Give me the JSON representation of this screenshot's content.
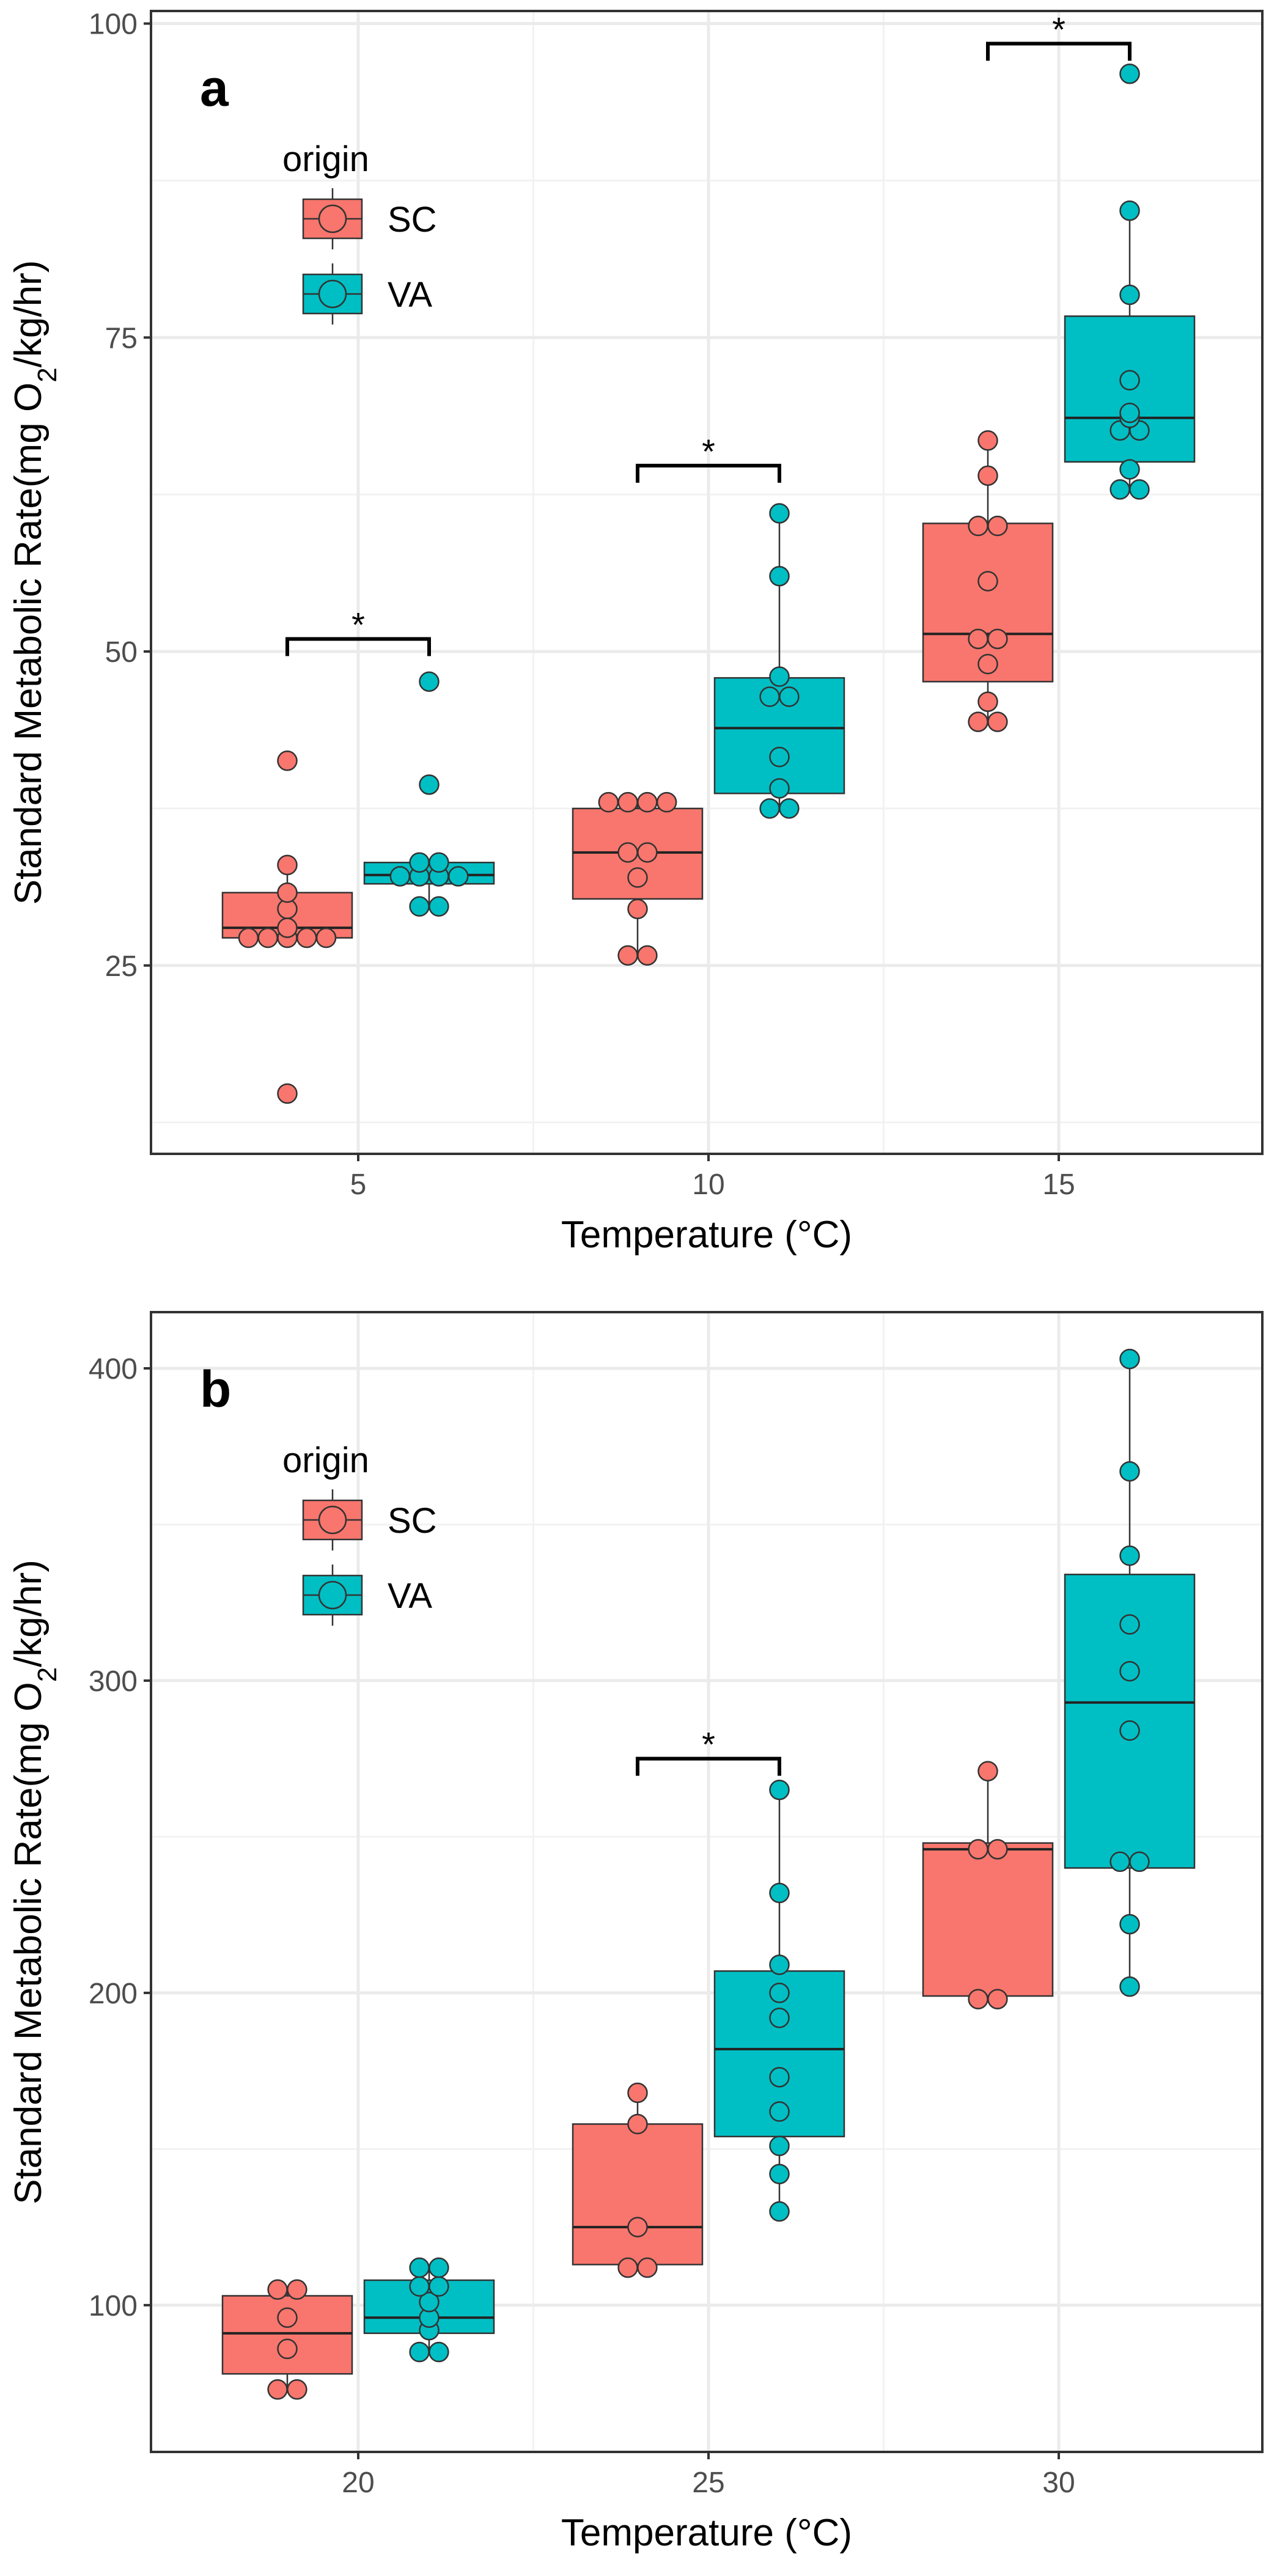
{
  "chart_data": [
    {
      "panel_label": "a",
      "type": "box",
      "xlabel": "Temperature (°C)",
      "ylabel_prefix": "Standard Metabolic Rate(mg O",
      "ylabel_sub": "2",
      "ylabel_suffix": "/kg/hr)",
      "categories": [
        "5",
        "10",
        "15"
      ],
      "ylim": [
        10,
        101
      ],
      "yticks": [
        25,
        50,
        75,
        100
      ],
      "ygrid_minor": [
        12.5,
        37.5,
        62.5,
        87.5
      ],
      "legend": {
        "title": "origin",
        "entries": [
          "SC",
          "VA"
        ],
        "placement": "top-left"
      },
      "series": [
        {
          "name": "SC",
          "color": "#F8766D",
          "boxes": [
            {
              "category": "5",
              "min": 27.2,
              "q1": 27.2,
              "median": 28.0,
              "q3": 30.8,
              "max": 33.0,
              "points": [
                14.8,
                27.2,
                27.2,
                27.2,
                27.2,
                27.2,
                28.0,
                29.5,
                30.8,
                33.0,
                41.3
              ]
            },
            {
              "category": "10",
              "min": 25.8,
              "q1": 30.3,
              "median": 34.0,
              "q3": 37.5,
              "max": 38.0,
              "points": [
                25.8,
                25.8,
                29.5,
                32.0,
                34.0,
                34.0,
                38.0,
                38.0,
                38.0,
                38.0
              ]
            },
            {
              "category": "15",
              "min": 44.4,
              "q1": 47.6,
              "median": 51.4,
              "q3": 60.2,
              "max": 66.8,
              "points": [
                44.4,
                44.4,
                46.0,
                49.0,
                51.0,
                51.0,
                55.6,
                60.0,
                60.0,
                64.0,
                66.8
              ]
            }
          ]
        },
        {
          "name": "VA",
          "color": "#00BFC4",
          "boxes": [
            {
              "category": "5",
              "min": 29.7,
              "q1": 31.5,
              "median": 32.2,
              "q3": 33.2,
              "max": 33.2,
              "points": [
                29.7,
                29.7,
                32.1,
                32.1,
                32.1,
                32.1,
                33.2,
                33.2,
                39.4,
                47.6
              ]
            },
            {
              "category": "10",
              "min": 37.5,
              "q1": 38.7,
              "median": 43.9,
              "q3": 47.9,
              "max": 61.0,
              "points": [
                37.5,
                37.5,
                39.1,
                41.6,
                46.4,
                46.4,
                48.0,
                56.0,
                61.0
              ]
            },
            {
              "category": "15",
              "min": 62.9,
              "q1": 65.1,
              "median": 68.6,
              "q3": 76.7,
              "max": 85.1,
              "points": [
                62.9,
                62.9,
                64.5,
                67.6,
                67.6,
                68.6,
                69.0,
                71.6,
                78.4,
                85.1,
                96.0
              ]
            }
          ]
        }
      ],
      "significance": [
        {
          "category": "5",
          "y": 51.0,
          "label": "*"
        },
        {
          "category": "10",
          "y": 64.8,
          "label": "*"
        },
        {
          "category": "15",
          "y": 98.4,
          "label": "*"
        }
      ]
    },
    {
      "panel_label": "b",
      "type": "box",
      "xlabel": "Temperature (°C)",
      "ylabel_prefix": "Standard Metabolic Rate(mg O",
      "ylabel_sub": "2",
      "ylabel_suffix": "/kg/hr)",
      "categories": [
        "20",
        "25",
        "30"
      ],
      "ylim": [
        53,
        418
      ],
      "yticks": [
        100,
        200,
        300,
        400
      ],
      "ygrid_minor": [
        150,
        250,
        350
      ],
      "legend": {
        "title": "origin",
        "entries": [
          "SC",
          "VA"
        ],
        "placement": "top-left"
      },
      "series": [
        {
          "name": "SC",
          "color": "#F8766D",
          "boxes": [
            {
              "category": "20",
              "min": 73,
              "q1": 78,
              "median": 91,
              "q3": 103,
              "max": 105,
              "points": [
                73,
                73,
                86,
                96,
                105,
                105
              ]
            },
            {
              "category": "25",
              "min": 113,
              "q1": 113,
              "median": 125,
              "q3": 158,
              "max": 168,
              "points": [
                112,
                112,
                125,
                158,
                168
              ]
            },
            {
              "category": "30",
              "min": 199,
              "q1": 199,
              "median": 246,
              "q3": 248,
              "max": 271,
              "points": [
                198,
                198,
                246,
                246,
                271
              ]
            }
          ]
        },
        {
          "name": "VA",
          "color": "#00BFC4",
          "boxes": [
            {
              "category": "20",
              "min": 85,
              "q1": 91,
              "median": 96,
              "q3": 108,
              "max": 112,
              "points": [
                85,
                85,
                92,
                96,
                101,
                106,
                106,
                112,
                112
              ]
            },
            {
              "category": "25",
              "min": 130,
              "q1": 154,
              "median": 182,
              "q3": 207,
              "max": 265,
              "points": [
                130,
                142,
                151,
                162,
                173,
                192,
                200,
                209,
                232,
                265
              ]
            },
            {
              "category": "30",
              "min": 202,
              "q1": 240,
              "median": 293,
              "q3": 334,
              "max": 403,
              "points": [
                202,
                222,
                242,
                242,
                284,
                303,
                318,
                340,
                367,
                403
              ]
            }
          ]
        }
      ],
      "significance": [
        {
          "category": "25",
          "y": 275,
          "label": "*"
        }
      ]
    }
  ]
}
